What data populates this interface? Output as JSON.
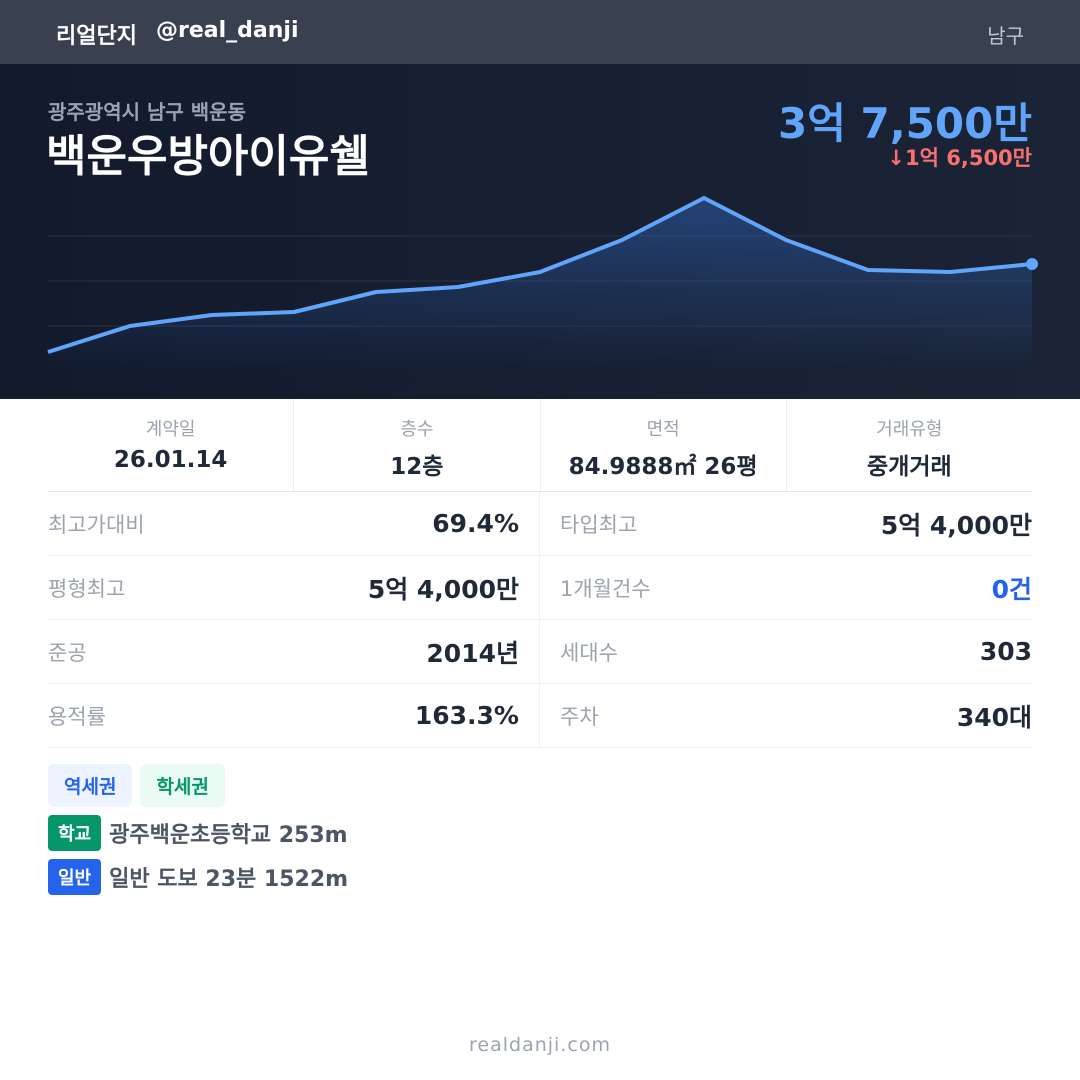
{
  "header": {
    "brand": "리얼단지",
    "handle": "@real_danji",
    "region": "남구"
  },
  "listing": {
    "location": "광주광역시 남구 백운동",
    "name": "백운우방아이유쉘",
    "price": "3억 7,500만",
    "change": "↓1억 6,500만"
  },
  "chart_data": {
    "type": "area",
    "color": "#60a5fa",
    "values": [
      15500,
      22000,
      24750,
      25500,
      30500,
      31750,
      35500,
      43500,
      54000,
      43500,
      36000,
      35500,
      37500
    ],
    "ylim": [
      11000,
      56000
    ],
    "yticks": [
      22000,
      33250,
      44500
    ],
    "grid": true
  },
  "summary": [
    {
      "label": "계약일",
      "value": "26.01.14"
    },
    {
      "label": "층수",
      "value": "12층"
    },
    {
      "label": "면적",
      "value": "84.9888㎡ 26평"
    },
    {
      "label": "거래유형",
      "value": "중개거래"
    }
  ],
  "stats": [
    {
      "label": "최고가대비",
      "value": "69.4%"
    },
    {
      "label": "타입최고",
      "value": "5억 4,000만"
    },
    {
      "label": "평형최고",
      "value": "5억 4,000만"
    },
    {
      "label": "1개월건수",
      "value": "0건",
      "color": "#2563eb"
    },
    {
      "label": "준공",
      "value": "2014년"
    },
    {
      "label": "세대수",
      "value": "303"
    },
    {
      "label": "용적률",
      "value": "163.3%"
    },
    {
      "label": "주차",
      "value": "340대"
    }
  ],
  "tags": [
    "역세권",
    "학세권"
  ],
  "pois": [
    {
      "badge": "학교",
      "text": "광주백운초등학교 253m"
    },
    {
      "badge": "일반",
      "text": "일반 도보 23분 1522m"
    }
  ],
  "footer": "realdanji.com"
}
